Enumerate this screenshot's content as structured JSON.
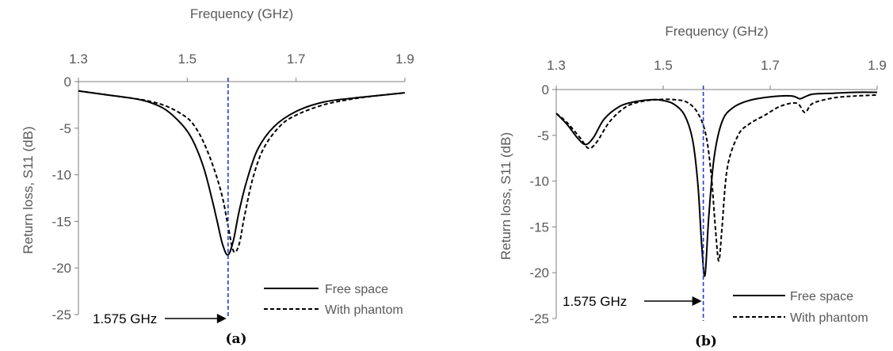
{
  "chart_data": [
    {
      "type": "line",
      "caption": "(a)",
      "xlabel": "Frequency (GHz)",
      "ylabel": "Return loss, S11 (dB)",
      "xlim": [
        1.3,
        1.9
      ],
      "ylim": [
        -25,
        0
      ],
      "xticks": [
        1.3,
        1.5,
        1.7,
        1.9
      ],
      "xtick_labels": [
        "1.3",
        "1.5",
        "1.7",
        "1.9"
      ],
      "yticks": [
        0,
        -5,
        -10,
        -15,
        -20,
        -25
      ],
      "ytick_labels": [
        "0",
        "-5",
        "-10",
        "-15",
        "-20",
        "-25"
      ],
      "x_axis_position": "top",
      "grid": false,
      "legend_position": "bottom-right",
      "annotation": {
        "text": "1.575 GHz",
        "x": 1.575,
        "marker": "dashed vertical line with arrow"
      },
      "series": [
        {
          "name": "Free space",
          "style": "solid",
          "x": [
            1.3,
            1.35,
            1.4,
            1.43,
            1.46,
            1.49,
            1.51,
            1.53,
            1.545,
            1.555,
            1.565,
            1.575,
            1.585,
            1.595,
            1.61,
            1.63,
            1.66,
            1.7,
            1.75,
            1.8,
            1.85,
            1.9
          ],
          "y": [
            -1.0,
            -1.4,
            -1.8,
            -2.2,
            -3.0,
            -4.6,
            -6.3,
            -9.2,
            -12.5,
            -15.0,
            -17.5,
            -18.6,
            -17.0,
            -14.0,
            -10.5,
            -7.2,
            -4.8,
            -3.2,
            -2.2,
            -1.8,
            -1.5,
            -1.2
          ]
        },
        {
          "name": "With phantom",
          "style": "dashed",
          "x": [
            1.3,
            1.35,
            1.4,
            1.43,
            1.46,
            1.49,
            1.51,
            1.53,
            1.55,
            1.565,
            1.575,
            1.585,
            1.595,
            1.605,
            1.62,
            1.64,
            1.67,
            1.7,
            1.75,
            1.8,
            1.85,
            1.9
          ],
          "y": [
            -1.0,
            -1.4,
            -1.8,
            -2.1,
            -2.6,
            -3.5,
            -4.5,
            -6.5,
            -9.5,
            -12.5,
            -15.5,
            -18.2,
            -17.5,
            -14.5,
            -10.5,
            -7.2,
            -4.8,
            -3.6,
            -2.5,
            -1.9,
            -1.5,
            -1.2
          ]
        }
      ]
    },
    {
      "type": "line",
      "caption": "(b)",
      "xlabel": "Frequency (GHz)",
      "ylabel": "Return loss, S11 (dB)",
      "xlim": [
        1.3,
        1.9
      ],
      "ylim": [
        -25,
        0
      ],
      "xticks": [
        1.3,
        1.5,
        1.7,
        1.9
      ],
      "xtick_labels": [
        "1.3",
        "1.5",
        "1.7",
        "1.9"
      ],
      "yticks": [
        0,
        -5,
        -10,
        -15,
        -20,
        -25
      ],
      "ytick_labels": [
        "0",
        "-5",
        "-10",
        "-15",
        "-20",
        "-25"
      ],
      "x_axis_position": "top",
      "grid": false,
      "legend_position": "bottom-right",
      "annotation": {
        "text": "1.575 GHz",
        "x": 1.575,
        "marker": "dashed vertical line with arrow"
      },
      "series": [
        {
          "name": "Free space",
          "style": "solid",
          "x": [
            1.3,
            1.32,
            1.34,
            1.355,
            1.37,
            1.39,
            1.42,
            1.45,
            1.48,
            1.5,
            1.52,
            1.54,
            1.555,
            1.565,
            1.572,
            1.578,
            1.585,
            1.595,
            1.61,
            1.63,
            1.66,
            1.7,
            1.74,
            1.755,
            1.765,
            1.78,
            1.82,
            1.86,
            1.9
          ],
          "y": [
            -2.6,
            -3.8,
            -5.3,
            -6.0,
            -5.2,
            -3.2,
            -1.8,
            -1.3,
            -1.1,
            -1.2,
            -1.6,
            -2.8,
            -5.5,
            -10.5,
            -17.0,
            -20.3,
            -14.0,
            -7.5,
            -3.5,
            -2.0,
            -1.2,
            -0.8,
            -0.7,
            -1.0,
            -0.8,
            -0.5,
            -0.4,
            -0.3,
            -0.3
          ]
        },
        {
          "name": "With phantom",
          "style": "dashed",
          "x": [
            1.3,
            1.32,
            1.345,
            1.36,
            1.375,
            1.4,
            1.43,
            1.46,
            1.49,
            1.52,
            1.545,
            1.565,
            1.58,
            1.59,
            1.598,
            1.604,
            1.61,
            1.62,
            1.64,
            1.66,
            1.69,
            1.72,
            1.75,
            1.765,
            1.78,
            1.82,
            1.86,
            1.9
          ],
          "y": [
            -2.6,
            -3.6,
            -5.3,
            -6.4,
            -5.8,
            -3.5,
            -1.9,
            -1.3,
            -1.1,
            -1.1,
            -1.4,
            -2.6,
            -5.0,
            -9.5,
            -15.5,
            -18.7,
            -15.0,
            -8.5,
            -5.0,
            -3.8,
            -2.8,
            -1.8,
            -1.5,
            -2.5,
            -1.5,
            -0.9,
            -0.7,
            -0.6
          ]
        }
      ]
    }
  ]
}
